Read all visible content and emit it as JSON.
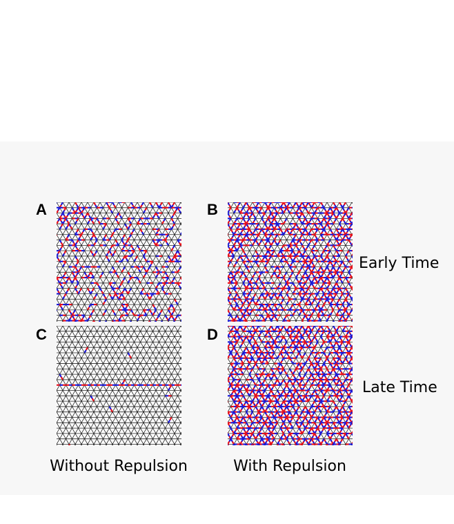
{
  "panels": [
    {
      "label": "A"
    },
    {
      "label": "B"
    },
    {
      "label": "C"
    },
    {
      "label": "D"
    }
  ],
  "row_labels": [
    "Early Time",
    "Late Time"
  ],
  "column_labels": [
    "Without Repulsion",
    "With Repulsion"
  ]
}
